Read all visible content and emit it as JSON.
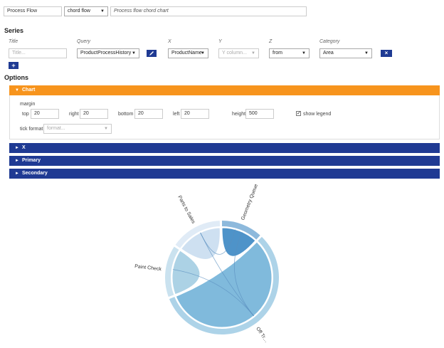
{
  "header": {
    "name_value": "Process Flow",
    "chart_type_selected": "chord flow",
    "description_placeholder": "Process flow chord chart"
  },
  "series": {
    "title": "Series",
    "columns": {
      "title": "Title",
      "query": "Query",
      "x": "X",
      "y": "Y",
      "z": "Z",
      "category": "Category"
    },
    "row": {
      "title_placeholder": "Title...",
      "query_selected": "ProductProcessHistory",
      "edit_icon": "pencil-icon",
      "x_selected": "ProductName",
      "y_placeholder": "Y column...",
      "z_selected": "from",
      "category_selected": "Area",
      "remove_label": "×"
    },
    "add_label": "+"
  },
  "options": {
    "title": "Options",
    "chart_panel": {
      "label": "Chart",
      "margin_label": "margin",
      "top_label": "top",
      "top_value": "20",
      "right_label": "right",
      "right_value": "20",
      "bottom_label": "bottom",
      "bottom_value": "20",
      "left_label": "left",
      "left_value": "20",
      "height_label": "height",
      "height_value": "500",
      "show_legend_label": "show legend",
      "show_legend_checked": true,
      "tick_format_label": "tick format",
      "tick_format_placeholder": "format..."
    },
    "collapsed_panels": [
      "X",
      "Primary",
      "Secondary"
    ]
  },
  "colors": {
    "orange": "#f7941d",
    "navy": "#1f3a93"
  },
  "chart_data": {
    "type": "chord",
    "groups": [
      {
        "name": "Geometry Queue",
        "share": 0.12,
        "color": "#2f80c0"
      },
      {
        "name": "Off Tr…",
        "share": 0.58,
        "color": "#6aaed6"
      },
      {
        "name": "Paint Check",
        "share": 0.15,
        "color": "#9ecae1"
      },
      {
        "name": "Parts to Sales",
        "share": 0.15,
        "color": "#c6dbef"
      }
    ]
  }
}
